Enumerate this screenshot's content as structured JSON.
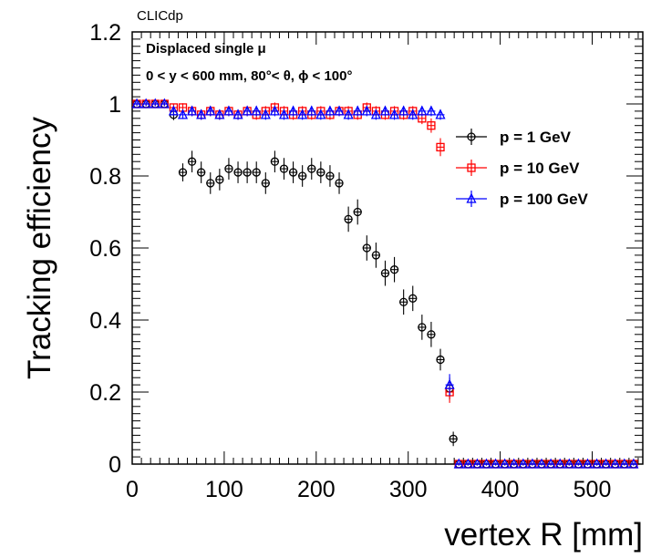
{
  "header": {
    "label": "CLICdp"
  },
  "annotations": [
    "Displaced single  μ",
    "0 < y < 600 mm, 80°< θ, ϕ < 100°"
  ],
  "chart_data": {
    "type": "scatter",
    "title": "",
    "xlabel": "vertex R [mm]",
    "ylabel": "Tracking efficiency",
    "xlim": [
      0,
      555
    ],
    "ylim": [
      0,
      1.2
    ],
    "xticks": [
      0,
      100,
      200,
      300,
      400,
      500
    ],
    "yticks": [
      0,
      0.2,
      0.4,
      0.6,
      0.8,
      1,
      1.2
    ],
    "ytick_labels": [
      "0",
      "0.2",
      "0.4",
      "0.6",
      "0.8",
      "1",
      "1.2"
    ],
    "grid": false,
    "legend_position": "right",
    "series": [
      {
        "name": "p = 1 GeV",
        "color": "#000000",
        "marker": "circle-open",
        "points": [
          [
            5,
            1.0,
            0.006
          ],
          [
            15,
            1.0,
            0.006
          ],
          [
            25,
            1.0,
            0.006
          ],
          [
            35,
            1.0,
            0.006
          ],
          [
            45,
            0.97,
            0.015
          ],
          [
            55,
            0.81,
            0.025
          ],
          [
            65,
            0.84,
            0.03
          ],
          [
            75,
            0.81,
            0.03
          ],
          [
            85,
            0.78,
            0.03
          ],
          [
            95,
            0.79,
            0.03
          ],
          [
            105,
            0.82,
            0.03
          ],
          [
            115,
            0.81,
            0.03
          ],
          [
            125,
            0.81,
            0.03
          ],
          [
            135,
            0.81,
            0.03
          ],
          [
            145,
            0.78,
            0.03
          ],
          [
            155,
            0.84,
            0.03
          ],
          [
            165,
            0.82,
            0.03
          ],
          [
            175,
            0.81,
            0.03
          ],
          [
            185,
            0.8,
            0.03
          ],
          [
            195,
            0.82,
            0.03
          ],
          [
            205,
            0.81,
            0.03
          ],
          [
            215,
            0.8,
            0.03
          ],
          [
            225,
            0.78,
            0.03
          ],
          [
            235,
            0.68,
            0.035
          ],
          [
            245,
            0.7,
            0.035
          ],
          [
            255,
            0.6,
            0.035
          ],
          [
            265,
            0.58,
            0.035
          ],
          [
            275,
            0.53,
            0.035
          ],
          [
            285,
            0.54,
            0.035
          ],
          [
            295,
            0.45,
            0.035
          ],
          [
            305,
            0.46,
            0.035
          ],
          [
            315,
            0.38,
            0.035
          ],
          [
            325,
            0.36,
            0.035
          ],
          [
            335,
            0.29,
            0.03
          ],
          [
            345,
            0.21,
            0.03
          ],
          [
            349,
            0.07,
            0.02
          ],
          [
            355,
            0.0,
            0.004
          ],
          [
            365,
            0.0,
            0.004
          ],
          [
            375,
            0.0,
            0.004
          ],
          [
            385,
            0.0,
            0.004
          ],
          [
            395,
            0.0,
            0.004
          ],
          [
            405,
            0.0,
            0.004
          ],
          [
            415,
            0.0,
            0.004
          ],
          [
            425,
            0.0,
            0.004
          ],
          [
            435,
            0.0,
            0.004
          ],
          [
            445,
            0.0,
            0.004
          ],
          [
            455,
            0.0,
            0.004
          ],
          [
            465,
            0.0,
            0.004
          ],
          [
            475,
            0.0,
            0.004
          ],
          [
            485,
            0.0,
            0.004
          ],
          [
            495,
            0.0,
            0.004
          ],
          [
            505,
            0.0,
            0.004
          ],
          [
            515,
            0.0,
            0.004
          ],
          [
            525,
            0.0,
            0.004
          ],
          [
            535,
            0.0,
            0.004
          ],
          [
            545,
            0.0,
            0.004
          ]
        ]
      },
      {
        "name": "p = 10 GeV",
        "color": "#ff0000",
        "marker": "square-open",
        "points": [
          [
            5,
            1.0,
            0.006
          ],
          [
            15,
            1.0,
            0.006
          ],
          [
            25,
            1.0,
            0.006
          ],
          [
            35,
            1.0,
            0.006
          ],
          [
            45,
            0.99,
            0.01
          ],
          [
            55,
            0.99,
            0.012
          ],
          [
            65,
            0.98,
            0.014
          ],
          [
            75,
            0.97,
            0.014
          ],
          [
            85,
            0.98,
            0.014
          ],
          [
            95,
            0.97,
            0.014
          ],
          [
            105,
            0.98,
            0.014
          ],
          [
            115,
            0.97,
            0.014
          ],
          [
            125,
            0.98,
            0.014
          ],
          [
            135,
            0.97,
            0.014
          ],
          [
            145,
            0.98,
            0.014
          ],
          [
            155,
            0.99,
            0.014
          ],
          [
            165,
            0.98,
            0.014
          ],
          [
            175,
            0.97,
            0.014
          ],
          [
            185,
            0.98,
            0.014
          ],
          [
            195,
            0.97,
            0.014
          ],
          [
            205,
            0.98,
            0.014
          ],
          [
            215,
            0.97,
            0.014
          ],
          [
            225,
            0.98,
            0.014
          ],
          [
            235,
            0.98,
            0.014
          ],
          [
            245,
            0.97,
            0.014
          ],
          [
            255,
            0.99,
            0.014
          ],
          [
            265,
            0.98,
            0.014
          ],
          [
            275,
            0.97,
            0.014
          ],
          [
            285,
            0.98,
            0.014
          ],
          [
            295,
            0.97,
            0.014
          ],
          [
            305,
            0.98,
            0.014
          ],
          [
            315,
            0.96,
            0.016
          ],
          [
            325,
            0.94,
            0.02
          ],
          [
            335,
            0.88,
            0.025
          ],
          [
            345,
            0.2,
            0.03
          ],
          [
            355,
            0.0,
            0.004
          ],
          [
            365,
            0.0,
            0.004
          ],
          [
            375,
            0.0,
            0.004
          ],
          [
            385,
            0.0,
            0.004
          ],
          [
            395,
            0.0,
            0.004
          ],
          [
            405,
            0.0,
            0.004
          ],
          [
            415,
            0.0,
            0.004
          ],
          [
            425,
            0.0,
            0.004
          ],
          [
            435,
            0.0,
            0.004
          ],
          [
            445,
            0.0,
            0.004
          ],
          [
            455,
            0.0,
            0.004
          ],
          [
            465,
            0.0,
            0.004
          ],
          [
            475,
            0.0,
            0.004
          ],
          [
            485,
            0.0,
            0.004
          ],
          [
            495,
            0.0,
            0.004
          ],
          [
            505,
            0.0,
            0.004
          ],
          [
            515,
            0.0,
            0.004
          ],
          [
            525,
            0.0,
            0.004
          ],
          [
            535,
            0.0,
            0.004
          ],
          [
            545,
            0.0,
            0.004
          ]
        ]
      },
      {
        "name": "p = 100 GeV",
        "color": "#0000ff",
        "marker": "triangle-open",
        "points": [
          [
            5,
            1.0,
            0.006
          ],
          [
            15,
            1.0,
            0.006
          ],
          [
            25,
            1.0,
            0.006
          ],
          [
            35,
            1.0,
            0.006
          ],
          [
            45,
            0.98,
            0.01
          ],
          [
            55,
            0.97,
            0.012
          ],
          [
            65,
            0.98,
            0.014
          ],
          [
            75,
            0.97,
            0.014
          ],
          [
            85,
            0.98,
            0.014
          ],
          [
            95,
            0.97,
            0.014
          ],
          [
            105,
            0.98,
            0.014
          ],
          [
            115,
            0.97,
            0.014
          ],
          [
            125,
            0.98,
            0.014
          ],
          [
            135,
            0.98,
            0.014
          ],
          [
            145,
            0.97,
            0.014
          ],
          [
            155,
            0.98,
            0.014
          ],
          [
            165,
            0.97,
            0.014
          ],
          [
            175,
            0.98,
            0.014
          ],
          [
            185,
            0.97,
            0.014
          ],
          [
            195,
            0.98,
            0.014
          ],
          [
            205,
            0.97,
            0.014
          ],
          [
            215,
            0.98,
            0.014
          ],
          [
            225,
            0.98,
            0.014
          ],
          [
            235,
            0.97,
            0.014
          ],
          [
            245,
            0.98,
            0.014
          ],
          [
            255,
            0.98,
            0.014
          ],
          [
            265,
            0.97,
            0.014
          ],
          [
            275,
            0.98,
            0.014
          ],
          [
            285,
            0.97,
            0.014
          ],
          [
            295,
            0.98,
            0.014
          ],
          [
            305,
            0.97,
            0.014
          ],
          [
            315,
            0.98,
            0.014
          ],
          [
            325,
            0.98,
            0.014
          ],
          [
            335,
            0.97,
            0.014
          ],
          [
            345,
            0.22,
            0.03
          ],
          [
            355,
            0.0,
            0.004
          ],
          [
            365,
            0.0,
            0.004
          ],
          [
            375,
            0.0,
            0.004
          ],
          [
            385,
            0.0,
            0.004
          ],
          [
            395,
            0.0,
            0.004
          ],
          [
            405,
            0.0,
            0.004
          ],
          [
            415,
            0.0,
            0.004
          ],
          [
            425,
            0.0,
            0.004
          ],
          [
            435,
            0.0,
            0.004
          ],
          [
            445,
            0.0,
            0.004
          ],
          [
            455,
            0.0,
            0.004
          ],
          [
            465,
            0.0,
            0.004
          ],
          [
            475,
            0.0,
            0.004
          ],
          [
            485,
            0.0,
            0.004
          ],
          [
            495,
            0.0,
            0.004
          ],
          [
            505,
            0.0,
            0.004
          ],
          [
            515,
            0.0,
            0.004
          ],
          [
            525,
            0.0,
            0.004
          ],
          [
            535,
            0.0,
            0.004
          ],
          [
            545,
            0.0,
            0.004
          ]
        ]
      }
    ]
  }
}
